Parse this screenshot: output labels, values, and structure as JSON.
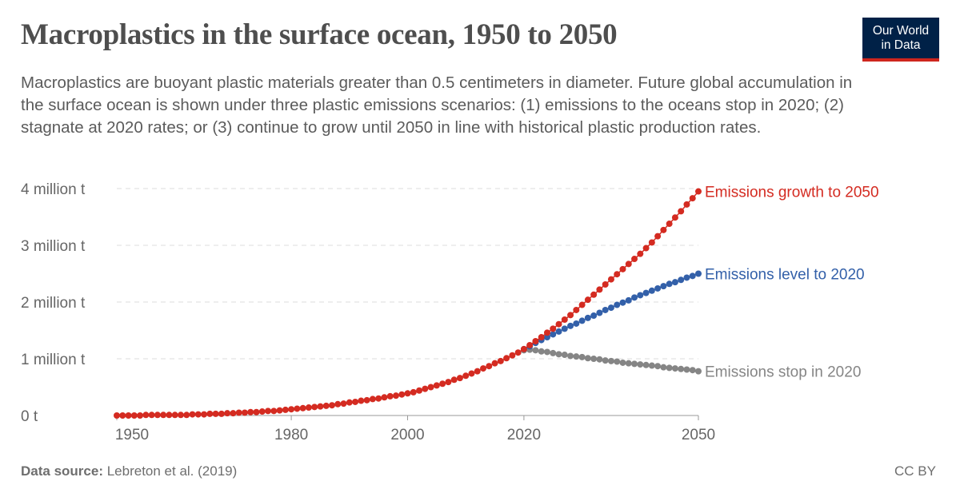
{
  "header": {
    "title": "Macroplastics in the surface ocean, 1950 to 2050",
    "subtitle": "Macroplastics are buoyant plastic materials greater than 0.5 centimeters in diameter. Future global accumulation in the surface ocean is shown under three plastic emissions scenarios: (1) emissions to the oceans stop in 2020; (2) stagnate at 2020 rates; or (3) continue to grow until 2050 in line with historical plastic production rates.",
    "logo_line1": "Our World",
    "logo_line2": "in Data"
  },
  "footer": {
    "source_label": "Data source:",
    "source": "Lebreton et al. (2019)",
    "license": "CC BY"
  },
  "chart_data": {
    "type": "line",
    "xlim": [
      1950,
      2050
    ],
    "ylim": [
      0,
      4000000
    ],
    "x_ticks": [
      "1950",
      "1980",
      "2000",
      "2020",
      "2050"
    ],
    "x_tick_values": [
      1950,
      1980,
      2000,
      2020,
      2050
    ],
    "y_ticks": [
      "0 t",
      "1 million t",
      "2 million t",
      "3 million t",
      "4 million t"
    ],
    "y_tick_values": [
      0,
      1000000,
      2000000,
      3000000,
      4000000
    ],
    "grid": "horizontal dashed",
    "legend": "inline-right",
    "unit": "million t",
    "series": [
      {
        "name": "Emissions stop in 2020",
        "color": "#858585",
        "start_year": 2020,
        "values": [
          1.15,
          1.16,
          1.15,
          1.13,
          1.12,
          1.1,
          1.08,
          1.07,
          1.05,
          1.04,
          1.03,
          1.01,
          1.0,
          0.99,
          0.97,
          0.96,
          0.95,
          0.93,
          0.92,
          0.91,
          0.9,
          0.89,
          0.88,
          0.87,
          0.85,
          0.84,
          0.83,
          0.82,
          0.81,
          0.8,
          0.78
        ]
      },
      {
        "name": "Emissions level to 2020",
        "color": "#3360a9",
        "start_year": 2020,
        "values": [
          1.17,
          1.22,
          1.28,
          1.33,
          1.38,
          1.43,
          1.48,
          1.53,
          1.58,
          1.62,
          1.67,
          1.72,
          1.76,
          1.81,
          1.86,
          1.9,
          1.95,
          1.99,
          2.03,
          2.08,
          2.12,
          2.16,
          2.2,
          2.24,
          2.28,
          2.32,
          2.35,
          2.39,
          2.43,
          2.46,
          2.5
        ]
      },
      {
        "name": "Emissions growth to 2050",
        "color": "#d42b21",
        "start_year": 1950,
        "values": [
          0,
          0,
          0,
          0,
          0,
          0.01,
          0.01,
          0.01,
          0.01,
          0.01,
          0.01,
          0.01,
          0.01,
          0.02,
          0.02,
          0.02,
          0.03,
          0.03,
          0.03,
          0.04,
          0.04,
          0.05,
          0.05,
          0.06,
          0.06,
          0.07,
          0.08,
          0.08,
          0.09,
          0.1,
          0.11,
          0.12,
          0.13,
          0.14,
          0.15,
          0.16,
          0.17,
          0.18,
          0.2,
          0.21,
          0.23,
          0.24,
          0.26,
          0.27,
          0.29,
          0.3,
          0.32,
          0.34,
          0.35,
          0.37,
          0.39,
          0.41,
          0.44,
          0.47,
          0.5,
          0.53,
          0.56,
          0.59,
          0.63,
          0.66,
          0.7,
          0.74,
          0.78,
          0.83,
          0.87,
          0.92,
          0.96,
          1.01,
          1.06,
          1.11,
          1.17,
          1.24,
          1.31,
          1.38,
          1.46,
          1.53,
          1.61,
          1.69,
          1.77,
          1.86,
          1.95,
          2.04,
          2.13,
          2.22,
          2.31,
          2.4,
          2.49,
          2.58,
          2.67,
          2.76,
          2.85,
          2.95,
          3.05,
          3.16,
          3.27,
          3.38,
          3.49,
          3.6,
          3.72,
          3.83,
          3.95
        ]
      }
    ]
  }
}
